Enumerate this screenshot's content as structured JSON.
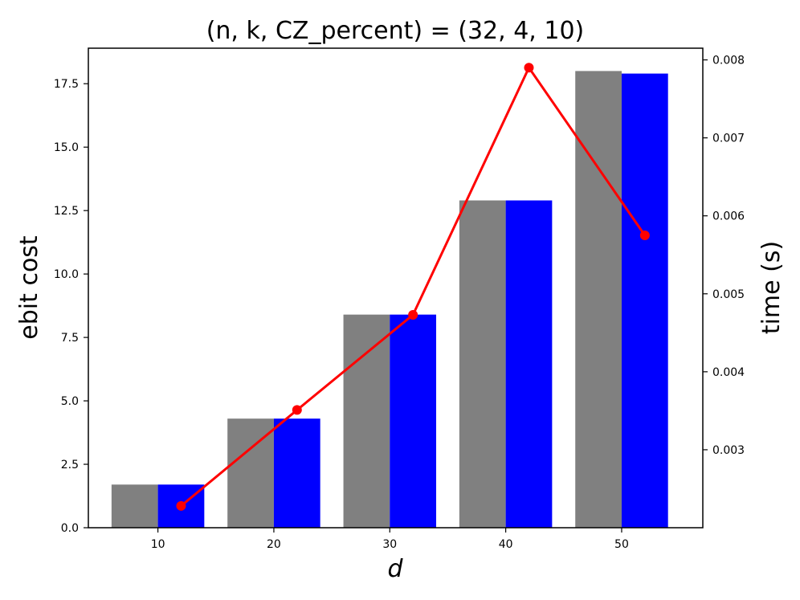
{
  "chart_data": {
    "type": "bar+line",
    "title": "(n, k, CZ_percent) = (32, 4, 10)",
    "xlabel": "d",
    "ylabel_left": "ebit cost",
    "ylabel_right": "time (s)",
    "categories": [
      10,
      20,
      30,
      40,
      50
    ],
    "bar_series": [
      {
        "color": "#808080",
        "values": [
          1.7,
          4.3,
          8.4,
          12.9,
          18.0
        ]
      },
      {
        "color": "#0000ff",
        "values": [
          1.7,
          4.3,
          8.4,
          12.9,
          17.9
        ]
      }
    ],
    "line_series": {
      "color": "#ff0000",
      "x": [
        12,
        22,
        32,
        42,
        52
      ],
      "values": [
        0.00228,
        0.00351,
        0.00473,
        0.0079,
        0.00575
      ]
    },
    "x_ticks": [
      "10",
      "20",
      "30",
      "40",
      "50"
    ],
    "y_left_ticks": [
      "0.0",
      "2.5",
      "5.0",
      "7.5",
      "10.0",
      "12.5",
      "15.0",
      "17.5"
    ],
    "y_right_ticks": [
      "0.003",
      "0.004",
      "0.005",
      "0.006",
      "0.007",
      "0.008"
    ],
    "xlim": [
      4,
      57
    ],
    "ylim_left": [
      0,
      18.9
    ],
    "ylim_right": [
      0.002,
      0.00815
    ],
    "grid": false
  }
}
